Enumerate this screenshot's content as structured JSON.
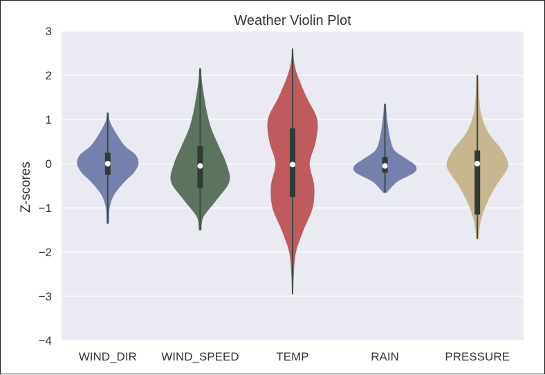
{
  "chart_data": {
    "type": "violin",
    "title": "Weather Violin Plot",
    "xlabel": "",
    "ylabel": "Z-scores",
    "ylim": [
      -4,
      3
    ],
    "yticks": [
      3,
      2,
      1,
      0,
      -1,
      -2,
      -3,
      -4
    ],
    "grid": true,
    "categories": [
      "WIND_DIR",
      "WIND_SPEED",
      "TEMP",
      "RAIN",
      "PRESSURE"
    ],
    "series": [
      {
        "category": "WIND_DIR",
        "color": "#7580ad",
        "min": -1.35,
        "max": 1.15,
        "q1": -0.25,
        "median": 0.0,
        "q3": 0.25,
        "density_y": [
          -1.35,
          -1.0,
          -0.7,
          -0.4,
          -0.2,
          0.0,
          0.2,
          0.4,
          0.7,
          0.95,
          1.15
        ],
        "density_w": [
          0.03,
          0.05,
          0.2,
          0.55,
          0.85,
          1.0,
          0.9,
          0.55,
          0.25,
          0.06,
          0.02
        ]
      },
      {
        "category": "WIND_SPEED",
        "color": "#5c7360",
        "min": -1.5,
        "max": 2.15,
        "q1": -0.55,
        "median": -0.05,
        "q3": 0.4,
        "density_y": [
          -1.5,
          -1.2,
          -0.8,
          -0.4,
          0.0,
          0.4,
          0.8,
          1.2,
          1.6,
          1.9,
          2.15
        ],
        "density_w": [
          0.03,
          0.1,
          0.55,
          0.95,
          0.85,
          0.6,
          0.35,
          0.2,
          0.1,
          0.04,
          0.02
        ]
      },
      {
        "category": "TEMP",
        "color": "#bf5a5f",
        "min": -2.95,
        "max": 2.6,
        "q1": -0.75,
        "median": -0.02,
        "q3": 0.8,
        "density_y": [
          -2.95,
          -2.5,
          -2.0,
          -1.5,
          -1.0,
          -0.5,
          0.0,
          0.5,
          1.0,
          1.5,
          2.0,
          2.3,
          2.6
        ],
        "density_w": [
          0.01,
          0.03,
          0.1,
          0.35,
          0.65,
          0.7,
          0.55,
          0.75,
          0.8,
          0.45,
          0.15,
          0.04,
          0.01
        ]
      },
      {
        "category": "RAIN",
        "color": "#7580ad",
        "min": -0.65,
        "max": 1.35,
        "q1": -0.2,
        "median": -0.05,
        "q3": 0.15,
        "density_y": [
          -0.65,
          -0.4,
          -0.2,
          -0.05,
          0.1,
          0.3,
          0.6,
          0.9,
          1.15,
          1.35
        ],
        "density_w": [
          0.05,
          0.4,
          0.95,
          1.0,
          0.7,
          0.3,
          0.15,
          0.08,
          0.04,
          0.02
        ]
      },
      {
        "category": "PRESSURE",
        "color": "#c7b690",
        "min": -1.7,
        "max": 2.0,
        "q1": -1.15,
        "median": 0.0,
        "q3": 0.3,
        "density_y": [
          -1.7,
          -1.3,
          -0.9,
          -0.5,
          -0.2,
          0.0,
          0.3,
          0.7,
          1.1,
          1.5,
          2.0
        ],
        "density_w": [
          0.02,
          0.1,
          0.3,
          0.6,
          0.9,
          1.0,
          0.8,
          0.35,
          0.12,
          0.05,
          0.02
        ]
      }
    ]
  }
}
